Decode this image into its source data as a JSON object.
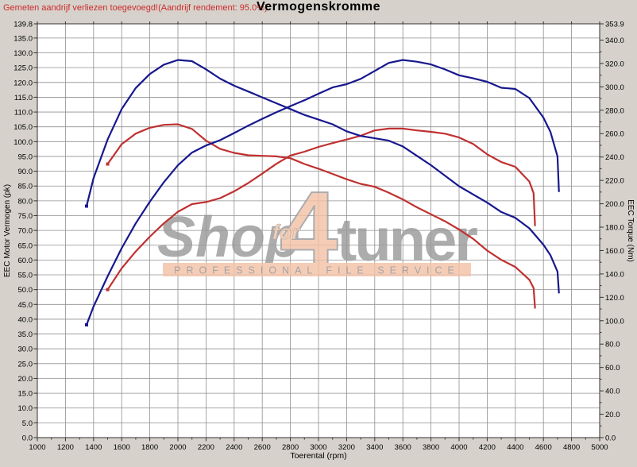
{
  "header": {
    "note": "Gemeten aandrijf verliezen toegevoegd!(Aandrijf rendement: 95.0%)",
    "title": "Vermogenskromme"
  },
  "watermark": {
    "word_shop": "Shop",
    "word_for": "for",
    "word_4": "4",
    "word_tuner": "tuner",
    "tagline": "PROFESSIONAL FILE SERVICE",
    "salmon": "#f4c3a8",
    "gray": "#9b9b9b",
    "tagline_gray": "#8f8f8f"
  },
  "colors": {
    "background": "#d6d2cb",
    "plot_background": "#ffffff",
    "grid": "#8f8f8f",
    "plot_border": "#333333",
    "tick_text": "#000000",
    "tuned_curve": "#17178f",
    "original_curve": "#c03030",
    "note_red": "#cc2a2a"
  },
  "chart_data": {
    "type": "line",
    "title": "Vermogenskromme",
    "xlabel": "Toerental (rpm)",
    "ylabel_left": "EEC Motor Vermogen (pk)",
    "ylabel_right": "EEC Torque (Nm)",
    "x_range": [
      1000,
      5000
    ],
    "x_label_step": 200,
    "x_minor_step": 100,
    "grid": true,
    "grid_x_step": 200,
    "grid_y_left_step": 5,
    "y_left_range": [
      0,
      139.8
    ],
    "y_left_label_step": 5,
    "y_left_top_label": "139.8",
    "y_right_range": [
      0,
      353.9
    ],
    "y_right_label_step": 20,
    "y_right_minor_step": 10,
    "y_right_top_label": "353.9",
    "legend": "none",
    "series": [
      {
        "id": "torque-original",
        "axis": "right",
        "unit": "Nm",
        "color": "#c03030",
        "x": [
          1500,
          1600,
          1700,
          1800,
          1900,
          2000,
          2100,
          2200,
          2300,
          2400,
          2500,
          2600,
          2700,
          2800,
          2900,
          3000,
          3100,
          3200,
          3300,
          3400,
          3500,
          3600,
          3700,
          3800,
          3900,
          4000,
          4100,
          4200,
          4300,
          4400,
          4500,
          4530,
          4540
        ],
        "values": [
          234,
          251,
          260,
          265,
          267.5,
          268,
          264,
          254,
          247,
          243.5,
          241.5,
          241,
          240.5,
          239,
          234,
          230,
          225.5,
          221,
          217,
          214.5,
          209.5,
          203.7,
          197,
          191,
          185,
          178,
          170,
          160,
          152,
          146,
          135,
          128,
          111
        ]
      },
      {
        "id": "power-original",
        "axis": "left",
        "unit": "pk",
        "color": "#c03030",
        "x": [
          1500,
          1600,
          1700,
          1800,
          1900,
          2000,
          2100,
          2200,
          2300,
          2400,
          2500,
          2600,
          2700,
          2800,
          2900,
          3000,
          3100,
          3200,
          3300,
          3400,
          3500,
          3600,
          3700,
          3800,
          3900,
          4000,
          4100,
          4200,
          4300,
          4400,
          4500,
          4530,
          4540
        ],
        "values": [
          50.0,
          57.2,
          62.9,
          67.9,
          72.4,
          76.3,
          78.9,
          79.6,
          80.9,
          83.2,
          86.0,
          89.2,
          92.5,
          95.3,
          96.6,
          98.2,
          99.5,
          100.7,
          102.0,
          103.8,
          104.4,
          104.4,
          103.8,
          103.3,
          102.7,
          101.4,
          99.2,
          95.7,
          93.1,
          91.5,
          86.5,
          82.6,
          71.7
        ]
      },
      {
        "id": "torque-tuned",
        "axis": "right",
        "unit": "Nm",
        "color": "#17178f",
        "x": [
          1350,
          1400,
          1500,
          1600,
          1700,
          1800,
          1900,
          2000,
          2100,
          2200,
          2300,
          2400,
          2500,
          2600,
          2700,
          2800,
          2900,
          3000,
          3100,
          3200,
          3300,
          3400,
          3500,
          3600,
          3700,
          3800,
          3900,
          4000,
          4100,
          4200,
          4300,
          4400,
          4500,
          4600,
          4650,
          4700,
          4710
        ],
        "values": [
          198,
          222,
          255,
          281,
          299,
          311,
          319,
          323,
          322,
          315,
          307,
          301,
          296,
          291,
          286,
          281,
          276,
          272,
          268,
          262,
          258,
          256,
          254,
          249,
          241,
          233,
          224,
          215,
          208,
          201,
          193,
          188,
          179,
          165,
          156,
          142,
          124
        ]
      },
      {
        "id": "power-tuned",
        "axis": "left",
        "unit": "pk",
        "color": "#17178f",
        "x": [
          1350,
          1400,
          1500,
          1600,
          1700,
          1800,
          1900,
          2000,
          2100,
          2200,
          2300,
          2400,
          2500,
          2600,
          2700,
          2800,
          2900,
          3000,
          3100,
          3200,
          3300,
          3400,
          3500,
          3600,
          3700,
          3800,
          3900,
          4000,
          4100,
          4200,
          4300,
          4400,
          4500,
          4600,
          4650,
          4700,
          4710
        ],
        "values": [
          38.1,
          44.3,
          54.5,
          64.0,
          72.4,
          79.7,
          86.3,
          92.0,
          96.3,
          98.7,
          100.5,
          102.9,
          105.4,
          107.7,
          109.9,
          112.0,
          114.0,
          116.2,
          118.3,
          119.4,
          121.2,
          123.9,
          126.6,
          127.6,
          127.0,
          126.1,
          124.4,
          122.4,
          121.4,
          120.2,
          118.2,
          117.8,
          114.7,
          108.1,
          103.3,
          95.0,
          83.2
        ]
      }
    ]
  }
}
